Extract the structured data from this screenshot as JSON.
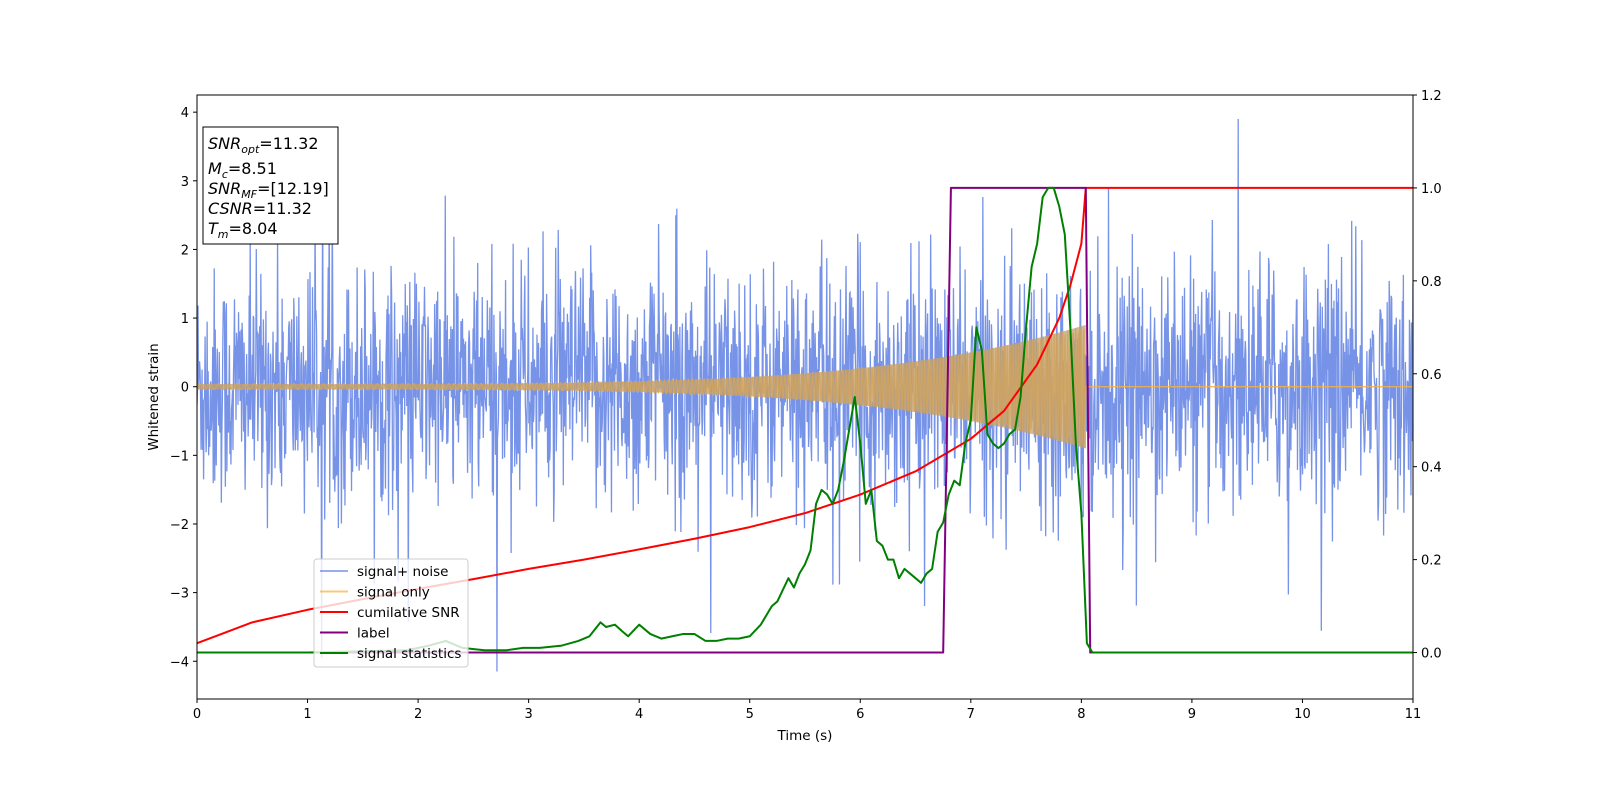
{
  "chart_data": {
    "type": "line",
    "xlabel": "Time (s)",
    "ylabel": "Whitened strain",
    "xlim": [
      0,
      11
    ],
    "ylim_left": [
      -4.55,
      4.25
    ],
    "ylim_right": [
      -0.1,
      1.2
    ],
    "x_ticks": [
      "0",
      "1",
      "2",
      "3",
      "4",
      "5",
      "6",
      "7",
      "8",
      "9",
      "10",
      "11"
    ],
    "y_ticks_left": [
      "−4",
      "−3",
      "−2",
      "−1",
      "0",
      "1",
      "2",
      "3",
      "4"
    ],
    "y_ticks_right": [
      "0.0",
      "0.2",
      "0.4",
      "0.6",
      "0.8",
      "1.0",
      "1.2"
    ],
    "legend_position": "lower-left",
    "info_box": {
      "position": "upper-left",
      "lines": [
        {
          "var": "SNR",
          "sub": "opt",
          "value": "=11.32"
        },
        {
          "var": "M",
          "sub": "c",
          "value": "=8.51"
        },
        {
          "var": "SNR",
          "sub": "MF",
          "value": "=[12.19]"
        },
        {
          "var": "CSNR",
          "sub": "",
          "value": "=11.32"
        },
        {
          "var": "T",
          "sub": "m",
          "value": "=8.04"
        }
      ]
    },
    "series": [
      {
        "name": "signal+ noise",
        "color": "#6b8ae6",
        "axis": "left",
        "kind": "noise",
        "noise_std": 0.85,
        "spike_max": 3.9,
        "spike_min": -4.15,
        "x_range": [
          0,
          11
        ]
      },
      {
        "name": "signal only",
        "color": "#f5b041",
        "axis": "left",
        "kind": "chirp",
        "start_amplitude": 0.04,
        "end_amplitude": 0.9,
        "t_merge": 8.04,
        "x_range": [
          0,
          11
        ]
      },
      {
        "name": "cumilative SNR",
        "color": "#ff0000",
        "axis": "right",
        "x": [
          0,
          0.5,
          1,
          1.5,
          2,
          2.5,
          3,
          3.5,
          4,
          4.5,
          5,
          5.5,
          6,
          6.5,
          7,
          7.3,
          7.6,
          7.8,
          7.9,
          8.0,
          8.04,
          8.05,
          11
        ],
        "y": [
          0.02,
          0.065,
          0.092,
          0.115,
          0.137,
          0.158,
          0.18,
          0.2,
          0.222,
          0.245,
          0.27,
          0.3,
          0.34,
          0.39,
          0.46,
          0.52,
          0.62,
          0.72,
          0.79,
          0.88,
          1.0,
          1.0,
          1.0
        ]
      },
      {
        "name": "label",
        "color": "#800080",
        "axis": "right",
        "x": [
          0,
          6.75,
          6.82,
          8.04,
          8.08,
          11
        ],
        "y": [
          0.0,
          0.0,
          1.0,
          1.0,
          0.0,
          0.0
        ]
      },
      {
        "name": "signal statistics",
        "color": "#008000",
        "axis": "right",
        "x": [
          0,
          1.0,
          1.9,
          2.1,
          2.25,
          2.4,
          2.6,
          2.8,
          2.95,
          3.1,
          3.3,
          3.45,
          3.55,
          3.65,
          3.7,
          3.78,
          3.85,
          3.9,
          4.0,
          4.05,
          4.1,
          4.2,
          4.3,
          4.4,
          4.5,
          4.6,
          4.7,
          4.8,
          4.9,
          5.0,
          5.1,
          5.2,
          5.25,
          5.35,
          5.4,
          5.45,
          5.5,
          5.55,
          5.6,
          5.65,
          5.7,
          5.75,
          5.8,
          5.85,
          5.95,
          6.0,
          6.05,
          6.1,
          6.15,
          6.2,
          6.25,
          6.3,
          6.35,
          6.4,
          6.45,
          6.5,
          6.55,
          6.6,
          6.65,
          6.7,
          6.75,
          6.8,
          6.85,
          6.9,
          6.95,
          7.0,
          7.05,
          7.1,
          7.15,
          7.2,
          7.25,
          7.3,
          7.35,
          7.4,
          7.45,
          7.5,
          7.55,
          7.6,
          7.65,
          7.7,
          7.75,
          7.8,
          7.85,
          7.9,
          7.95,
          8.0,
          8.05,
          8.1,
          8.2,
          11
        ],
        "y": [
          0.0,
          0.0,
          0.005,
          0.015,
          0.025,
          0.01,
          0.005,
          0.005,
          0.01,
          0.01,
          0.015,
          0.025,
          0.035,
          0.065,
          0.055,
          0.06,
          0.045,
          0.035,
          0.06,
          0.05,
          0.04,
          0.03,
          0.035,
          0.04,
          0.04,
          0.025,
          0.025,
          0.03,
          0.03,
          0.035,
          0.06,
          0.1,
          0.11,
          0.16,
          0.14,
          0.17,
          0.19,
          0.22,
          0.32,
          0.35,
          0.34,
          0.32,
          0.35,
          0.41,
          0.55,
          0.45,
          0.32,
          0.35,
          0.24,
          0.23,
          0.2,
          0.2,
          0.16,
          0.18,
          0.17,
          0.16,
          0.15,
          0.17,
          0.18,
          0.26,
          0.28,
          0.34,
          0.37,
          0.36,
          0.45,
          0.5,
          0.7,
          0.65,
          0.47,
          0.45,
          0.44,
          0.45,
          0.47,
          0.48,
          0.55,
          0.7,
          0.83,
          0.88,
          0.98,
          1.0,
          1.0,
          0.96,
          0.9,
          0.7,
          0.45,
          0.3,
          0.02,
          0.0,
          0.0,
          0.0
        ]
      }
    ]
  }
}
